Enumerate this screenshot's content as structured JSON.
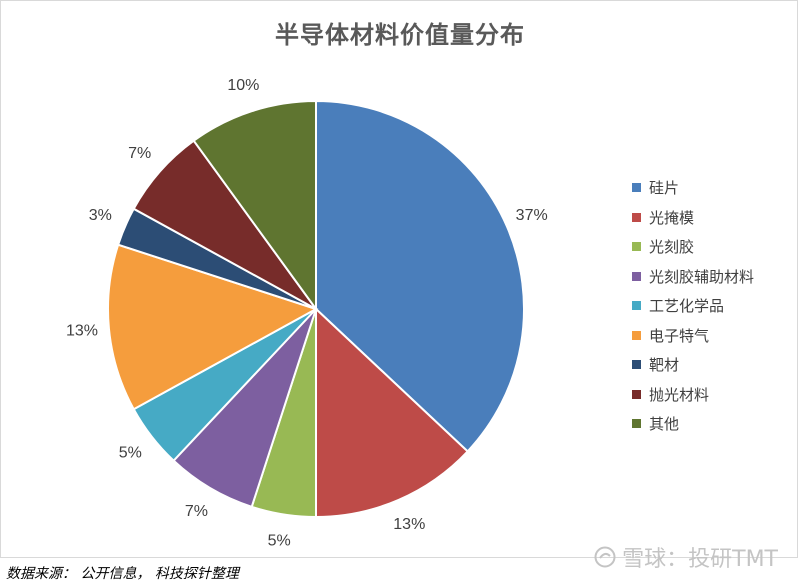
{
  "chart_data": {
    "type": "pie",
    "title": "半导体材料价值量分布",
    "categories": [
      "硅片",
      "光掩模",
      "光刻胶",
      "光刻胶辅助材料",
      "工艺化学品",
      "电子特气",
      "靶材",
      "抛光材料",
      "其他"
    ],
    "values": [
      37,
      13,
      5,
      7,
      5,
      13,
      3,
      7,
      10
    ],
    "value_labels": [
      "37%",
      "13%",
      "5%",
      "7%",
      "5%",
      "13%",
      "3%",
      "7%",
      "10%"
    ],
    "colors": [
      "#4a7ebb",
      "#be4b48",
      "#98b954",
      "#7d5fa0",
      "#46aac5",
      "#f59d3d",
      "#2c4d75",
      "#772c2a",
      "#5f7530"
    ],
    "start_angle": "12 o'clock",
    "direction": "clockwise",
    "legend_position": "right"
  },
  "footer": {
    "source": "数据来源： 公开信息， 科技探针整理",
    "watermark": "雪球：投研TMT"
  }
}
